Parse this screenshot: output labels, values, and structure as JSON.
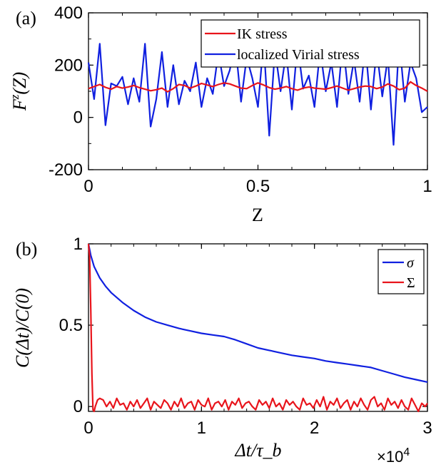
{
  "chart_data": [
    {
      "panel": "(a)",
      "type": "line",
      "xlabel": "Z",
      "ylabel": "F^z(Z)",
      "ylabel_parts": {
        "base": "F",
        "sup": "z",
        "arg": "(Z)"
      },
      "xlim": [
        0,
        1
      ],
      "ylim": [
        -200,
        400
      ],
      "xticks": [
        0,
        0.5,
        1
      ],
      "xtick_labels": [
        "0",
        "0.5",
        "1"
      ],
      "yticks": [
        -200,
        0,
        200,
        400
      ],
      "ytick_labels": [
        "-200",
        "0",
        "200",
        "400"
      ],
      "legend_position": "top-right",
      "series": [
        {
          "name": "IK stress",
          "color": "#e8141b",
          "x": [
            0,
            0.0167,
            0.0333,
            0.05,
            0.0667,
            0.0833,
            0.1,
            0.1167,
            0.1333,
            0.15,
            0.1667,
            0.1833,
            0.2,
            0.2167,
            0.2333,
            0.25,
            0.2667,
            0.2833,
            0.3,
            0.3167,
            0.3333,
            0.35,
            0.3667,
            0.3833,
            0.4,
            0.4167,
            0.4333,
            0.45,
            0.4667,
            0.4833,
            0.5,
            0.5167,
            0.5333,
            0.55,
            0.5667,
            0.5833,
            0.6,
            0.6167,
            0.6333,
            0.65,
            0.6667,
            0.6833,
            0.7,
            0.7167,
            0.7333,
            0.75,
            0.7667,
            0.7833,
            0.8,
            0.8167,
            0.8333,
            0.85,
            0.8667,
            0.8833,
            0.9,
            0.9167,
            0.9333,
            0.95,
            0.9667,
            0.9833,
            1
          ],
          "values": [
            110,
            118,
            126,
            115,
            108,
            118,
            112,
            116,
            122,
            114,
            108,
            102,
            106,
            112,
            98,
            110,
            126,
            122,
            112,
            120,
            130,
            124,
            118,
            126,
            132,
            128,
            120,
            112,
            110,
            122,
            132,
            124,
            114,
            108,
            112,
            118,
            110,
            104,
            112,
            116,
            112,
            110,
            108,
            114,
            120,
            112,
            104,
            110,
            116,
            120,
            118,
            110,
            116,
            128,
            120,
            106,
            112,
            136,
            122,
            112,
            100
          ]
        },
        {
          "name": "localized Virial stress",
          "color": "#1020e0",
          "x": [
            0,
            0.0167,
            0.0333,
            0.05,
            0.0667,
            0.0833,
            0.1,
            0.1167,
            0.1333,
            0.15,
            0.1667,
            0.1833,
            0.2,
            0.2167,
            0.2333,
            0.25,
            0.2667,
            0.2833,
            0.3,
            0.3167,
            0.3333,
            0.35,
            0.3667,
            0.3833,
            0.4,
            0.4167,
            0.4333,
            0.45,
            0.4667,
            0.4833,
            0.5,
            0.5167,
            0.5333,
            0.55,
            0.5667,
            0.5833,
            0.6,
            0.6167,
            0.6333,
            0.65,
            0.6667,
            0.6833,
            0.7,
            0.7167,
            0.7333,
            0.75,
            0.7667,
            0.7833,
            0.8,
            0.8167,
            0.8333,
            0.85,
            0.8667,
            0.8833,
            0.9,
            0.9167,
            0.9333,
            0.95,
            0.9667,
            0.9833,
            1
          ],
          "values": [
            210,
            70,
            282,
            -30,
            130,
            120,
            155,
            50,
            150,
            60,
            282,
            -35,
            70,
            250,
            40,
            200,
            50,
            140,
            100,
            210,
            40,
            150,
            90,
            250,
            120,
            180,
            280,
            60,
            230,
            150,
            40,
            290,
            -70,
            260,
            100,
            250,
            30,
            280,
            110,
            160,
            40,
            260,
            100,
            210,
            40,
            290,
            90,
            220,
            60,
            280,
            30,
            260,
            80,
            230,
            -105,
            300,
            60,
            210,
            150,
            20,
            40
          ]
        }
      ]
    },
    {
      "panel": "(b)",
      "type": "line",
      "xlabel": "Δt/τ_b",
      "ylabel": "C(Δt)/C(0)",
      "x_multiplier_label": "×10^4",
      "xlim": [
        0,
        30000
      ],
      "ylim": [
        -0.03,
        1
      ],
      "xticks": [
        0,
        10000,
        20000,
        30000
      ],
      "xtick_labels": [
        "0",
        "1",
        "2",
        "3"
      ],
      "yticks": [
        0,
        0.5,
        1
      ],
      "ytick_labels": [
        "0",
        "0.5",
        "1"
      ],
      "legend_position": "top-right",
      "series": [
        {
          "name": "σ",
          "color": "#1020e0",
          "x": [
            0,
            200,
            500,
            1000,
            1500,
            2000,
            3000,
            4000,
            5000,
            6000,
            7000,
            8000,
            9000,
            10000,
            11000,
            12000,
            13000,
            14000,
            15000,
            16000,
            17000,
            18000,
            19000,
            20000,
            21000,
            22000,
            23000,
            24000,
            25000,
            26000,
            27000,
            28000,
            29000,
            30000
          ],
          "values": [
            1.0,
            0.93,
            0.86,
            0.79,
            0.74,
            0.7,
            0.64,
            0.59,
            0.55,
            0.52,
            0.5,
            0.48,
            0.465,
            0.45,
            0.44,
            0.43,
            0.41,
            0.385,
            0.36,
            0.345,
            0.33,
            0.315,
            0.305,
            0.295,
            0.28,
            0.27,
            0.26,
            0.25,
            0.24,
            0.22,
            0.2,
            0.18,
            0.165,
            0.15
          ]
        },
        {
          "name": "Σ",
          "color": "#e8141b",
          "x": [
            0,
            100,
            200,
            300,
            400,
            500,
            600,
            800,
            1000,
            1300,
            1600,
            1900,
            2200,
            2500,
            2800,
            3100,
            3400,
            3700,
            4000,
            4300,
            4600,
            4900,
            5200,
            5500,
            5800,
            6100,
            6400,
            6700,
            7000,
            7300,
            7600,
            7900,
            8200,
            8500,
            8800,
            9100,
            9400,
            9700,
            10000,
            10300,
            10600,
            10900,
            11200,
            11500,
            11800,
            12100,
            12400,
            12700,
            13000,
            13300,
            13600,
            13900,
            14200,
            14500,
            14800,
            15100,
            15400,
            15700,
            16000,
            16300,
            16600,
            16900,
            17200,
            17500,
            17800,
            18100,
            18400,
            18700,
            19000,
            19300,
            19600,
            19900,
            20200,
            20500,
            20800,
            21100,
            21400,
            21700,
            22000,
            22300,
            22600,
            22900,
            23200,
            23500,
            23800,
            24100,
            24400,
            24700,
            25000,
            25300,
            25600,
            25900,
            26200,
            26500,
            26800,
            27100,
            27400,
            27700,
            28000,
            28300,
            28600,
            28900,
            29200,
            29500,
            29800,
            30000
          ],
          "values": [
            1.0,
            0.92,
            0.6,
            0.2,
            -0.02,
            -0.03,
            0.0,
            0.04,
            0.05,
            0.04,
            0.0,
            0.03,
            -0.01,
            0.05,
            0.01,
            0.02,
            -0.02,
            0.03,
            0.0,
            0.04,
            -0.01,
            0.02,
            0.05,
            -0.02,
            0.03,
            0.01,
            -0.01,
            0.04,
            0.02,
            -0.02,
            0.03,
            0.0,
            0.05,
            -0.01,
            0.02,
            0.03,
            -0.02,
            0.04,
            0.01,
            0.0,
            0.05,
            -0.02,
            0.02,
            0.03,
            0.0,
            0.04,
            -0.02,
            0.03,
            0.01,
            0.05,
            -0.01,
            0.02,
            0.03,
            0.0,
            -0.02,
            0.04,
            0.01,
            0.03,
            -0.01,
            0.05,
            0.0,
            0.02,
            -0.02,
            0.04,
            0.01,
            0.03,
            0.0,
            -0.02,
            0.05,
            0.01,
            0.02,
            -0.01,
            0.04,
            0.0,
            0.06,
            -0.02,
            0.03,
            0.01,
            0.05,
            -0.01,
            0.02,
            0.04,
            -0.02,
            0.03,
            0.0,
            0.05,
            0.01,
            -0.02,
            0.04,
            0.06,
            0.0,
            0.02,
            -0.02,
            0.05,
            0.01,
            0.03,
            -0.01,
            0.04,
            0.0,
            -0.02,
            0.05,
            0.01,
            -0.03,
            0.02,
            0.0,
            0.02
          ]
        }
      ]
    }
  ]
}
